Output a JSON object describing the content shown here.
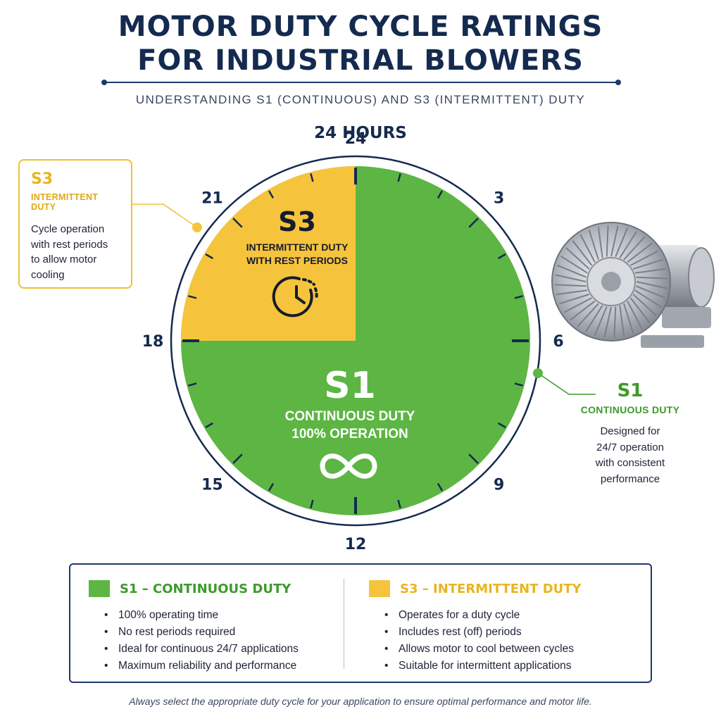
{
  "header": {
    "title_line1": "MOTOR DUTY CYCLE RATINGS",
    "title_line2": "FOR INDUSTRIAL BLOWERS",
    "subtitle": "UNDERSTANDING S1 (CONTINUOUS) AND S3 (INTERMITTENT) DUTY"
  },
  "dial": {
    "period_label": "24 HOURS",
    "hour_labels": [
      "24",
      "3",
      "6",
      "9",
      "12",
      "15",
      "18",
      "21"
    ],
    "s3_fraction_of_day": 0.25,
    "s3_start_hour": 18,
    "s3_end_hour": 24,
    "s1_sector": {
      "code": "S1",
      "line1": "CONTINUOUS DUTY",
      "line2": "100% OPERATION",
      "icon": "infinity-icon"
    },
    "s3_sector": {
      "code": "S3",
      "line1": "INTERMITTENT DUTY",
      "line2": "WITH REST PERIODS",
      "icon": "clock-icon"
    }
  },
  "callouts": {
    "s3": {
      "code": "S3",
      "title": "INTERMITTENT DUTY",
      "desc_lines": [
        "Cycle operation",
        "with rest periods",
        "to allow motor",
        "cooling"
      ]
    },
    "s1": {
      "code": "S1",
      "title": "CONTINUOUS DUTY",
      "desc_lines": [
        "Designed for",
        "24/7 operation",
        "with consistent",
        "performance"
      ]
    }
  },
  "legend": {
    "s1": {
      "heading": "S1 – CONTINUOUS DUTY",
      "items": [
        "100% operating time",
        "No rest periods required",
        "Ideal for continuous 24/7 applications",
        "Maximum reliability and performance"
      ]
    },
    "s3": {
      "heading": "S3 – INTERMITTENT DUTY",
      "items": [
        "Operates for a duty cycle",
        "Includes rest (off) periods",
        "Allows motor to cool between cycles",
        "Suitable for intermittent applications"
      ]
    }
  },
  "footnote": "Always select the appropriate duty cycle for your application to ensure optimal performance and motor life.",
  "colors": {
    "s1_green": "#5db543",
    "s1_text_green": "#3d9a2a",
    "s3_yellow": "#f6c43c",
    "s3_text_yellow": "#e8b520",
    "navy": "#142a4f"
  }
}
